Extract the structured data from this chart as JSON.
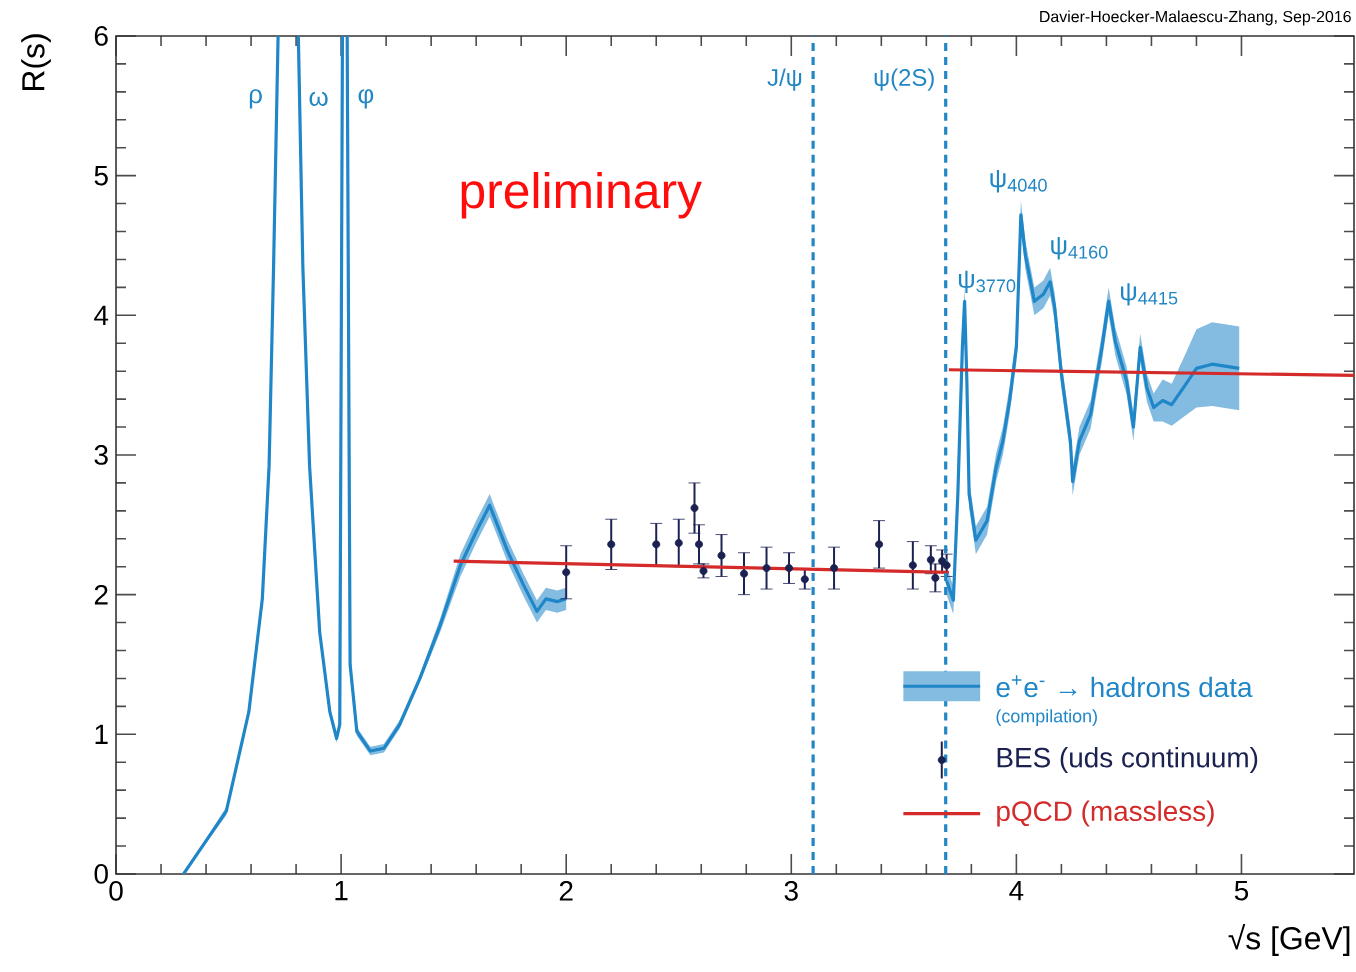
{
  "chart_data": {
    "type": "line",
    "xlabel": "√s   [GeV]",
    "ylabel": "R(s)",
    "xlim": [
      0,
      5.5
    ],
    "ylim": [
      0,
      6
    ],
    "xticks": [
      0,
      1,
      2,
      3,
      4,
      5
    ],
    "yticks": [
      0,
      1,
      2,
      3,
      4,
      5,
      6
    ],
    "legend": "bottom right",
    "series": [
      {
        "name": "e$^{+}$e$^{-}$ → hadrons data",
        "color": "#1f86c8",
        "line_style": "solid",
        "x": [
          0.3,
          0.49,
          0.59,
          0.65,
          0.68,
          0.7,
          0.72,
          0.765,
          0.81,
          0.83,
          0.86,
          0.905,
          0.95,
          0.98,
          0.994,
          1.006,
          1.016,
          1.027,
          1.04,
          1.07,
          1.13,
          1.19,
          1.26,
          1.35,
          1.44,
          1.53,
          1.6,
          1.66,
          1.74,
          1.81,
          1.87,
          1.91,
          1.96,
          2.0,
          2.85,
          3.69,
          3.72,
          3.74,
          3.76,
          3.77,
          3.78,
          3.79,
          3.82,
          3.87,
          3.91,
          3.94,
          3.97,
          4.0,
          4.02,
          4.04,
          4.08,
          4.12,
          4.15,
          4.17,
          4.2,
          4.24,
          4.25,
          4.28,
          4.33,
          4.38,
          4.41,
          4.44,
          4.49,
          4.52,
          4.55,
          4.58,
          4.61,
          4.65,
          4.69,
          4.75,
          4.8,
          4.87,
          4.99
        ],
        "values": [
          0,
          0.45,
          1.16,
          1.97,
          2.92,
          4.35,
          6,
          null,
          6,
          4.35,
          2.92,
          1.73,
          1.16,
          0.97,
          1.07,
          6,
          null,
          6,
          1.5,
          1.02,
          0.88,
          0.9,
          1.07,
          1.4,
          1.78,
          2.21,
          2.45,
          2.64,
          2.31,
          2.07,
          1.88,
          1.97,
          1.95,
          1.97,
          null,
          2.1,
          1.96,
          2.72,
          3.77,
          4.1,
          3.53,
          2.72,
          2.39,
          2.53,
          2.91,
          3.1,
          3.39,
          3.77,
          4.72,
          4.43,
          4.1,
          4.15,
          4.24,
          4.06,
          3.58,
          3.1,
          2.81,
          3.1,
          3.29,
          3.77,
          4.1,
          3.81,
          3.53,
          3.2,
          3.77,
          3.48,
          3.34,
          3.39,
          3.36,
          3.5,
          3.62,
          3.65,
          3.62
        ],
        "lower": [
          0,
          0.42,
          1.13,
          1.94,
          2.89,
          4.32,
          6,
          null,
          6,
          4.32,
          2.89,
          1.7,
          1.13,
          0.94,
          1.04,
          6,
          null,
          6,
          1.47,
          0.99,
          0.85,
          0.87,
          1.04,
          1.37,
          1.73,
          2.13,
          2.37,
          2.56,
          2.23,
          1.99,
          1.8,
          1.89,
          1.87,
          1.89,
          null,
          2.0,
          1.86,
          2.62,
          3.67,
          4.0,
          3.43,
          2.62,
          2.29,
          2.43,
          2.81,
          3.0,
          3.29,
          3.67,
          4.62,
          4.33,
          4.0,
          4.05,
          4.14,
          3.96,
          3.48,
          3.0,
          2.71,
          3.0,
          3.19,
          3.67,
          4.0,
          3.71,
          3.43,
          3.1,
          3.67,
          3.38,
          3.24,
          3.24,
          3.21,
          3.28,
          3.34,
          3.35,
          3.32
        ],
        "upper": [
          0,
          0.48,
          1.19,
          2.0,
          2.95,
          4.38,
          6,
          null,
          6,
          4.38,
          2.95,
          1.76,
          1.19,
          1.0,
          1.1,
          6,
          null,
          6,
          1.53,
          1.05,
          0.91,
          0.93,
          1.1,
          1.43,
          1.83,
          2.29,
          2.53,
          2.72,
          2.39,
          2.15,
          1.96,
          2.05,
          2.03,
          2.05,
          null,
          2.2,
          2.06,
          2.82,
          3.87,
          4.2,
          3.63,
          2.82,
          2.49,
          2.63,
          3.01,
          3.2,
          3.49,
          3.87,
          4.82,
          4.53,
          4.2,
          4.25,
          4.34,
          4.16,
          3.68,
          3.2,
          2.91,
          3.2,
          3.39,
          3.87,
          4.2,
          3.91,
          3.63,
          3.3,
          3.87,
          3.58,
          3.44,
          3.54,
          3.51,
          3.72,
          3.9,
          3.95,
          3.92
        ]
      },
      {
        "name": "BES (uds continuum)",
        "type": "scatter",
        "color": "#1b2150",
        "marker": "circle",
        "x": [
          2.0,
          2.2,
          2.4,
          2.5,
          2.57,
          2.59,
          2.61,
          2.69,
          2.79,
          2.89,
          2.99,
          3.06,
          3.19,
          3.39,
          3.54,
          3.62,
          3.64,
          3.67,
          3.69
        ],
        "values": [
          2.16,
          2.36,
          2.36,
          2.37,
          2.62,
          2.36,
          2.17,
          2.28,
          2.15,
          2.19,
          2.19,
          2.11,
          2.19,
          2.36,
          2.21,
          2.25,
          2.12,
          2.24,
          2.21
        ],
        "errors": [
          0.19,
          0.18,
          0.15,
          0.17,
          0.18,
          0.14,
          0.05,
          0.15,
          0.15,
          0.15,
          0.11,
          0.07,
          0.15,
          0.17,
          0.17,
          0.1,
          0.1,
          0.08,
          0.08
        ]
      },
      {
        "name": "pQCD (massless)",
        "color": "#d42a2a",
        "line_style": "solid",
        "x": [
          1.5,
          3.7
        ],
        "values": [
          2.24,
          2.16
        ]
      },
      {
        "color": "#d42a2a",
        "line_style": "solid",
        "x": [
          3.7,
          5.5
        ],
        "values": [
          3.61,
          3.57
        ]
      }
    ],
    "ref_lines": [
      {
        "axis": "x",
        "value": 3.097,
        "label": "J/ψ",
        "color": "#2186c4",
        "line_style": "dashed"
      },
      {
        "axis": "x",
        "value": 3.686,
        "label": "ψ(2S)",
        "color": "#2186c4",
        "line_style": "dashed"
      }
    ],
    "annotations": [
      "Davier-Hoecker-Malaescu-Zhang, Sep-2016",
      "preliminary",
      "(compilation)",
      "ρ",
      "ω",
      "φ",
      "ψ$_{3770}$",
      "ψ$_{4040}$",
      "ψ$_{4160}$",
      "ψ$_{4415}$"
    ]
  }
}
